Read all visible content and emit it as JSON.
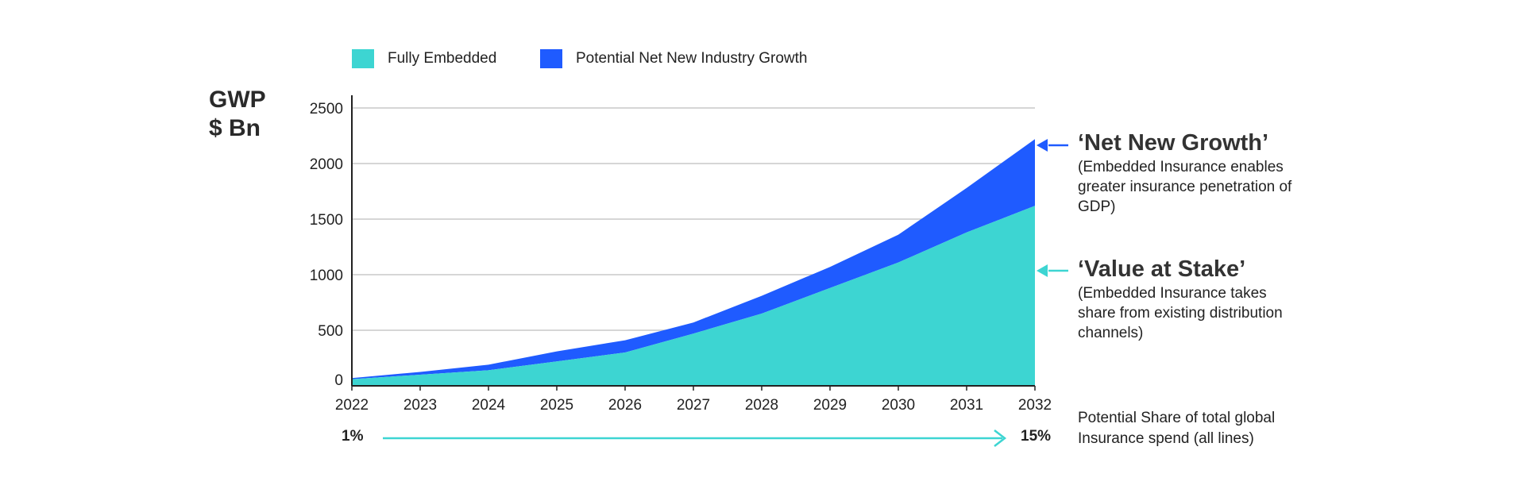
{
  "legend": {
    "fully_embedded": "Fully Embedded",
    "net_new": "Potential Net New Industry Growth"
  },
  "y_axis_label": {
    "line1": "GWP",
    "line2": "$ Bn"
  },
  "annotations": {
    "net_new": {
      "title": "‘Net New Growth’",
      "body_lines": [
        "(Embedded Insurance enables",
        "greater insurance penetration of",
        "GDP)"
      ]
    },
    "value_at_stake": {
      "title": "‘Value at Stake’",
      "body_lines": [
        "(Embedded Insurance takes",
        "share from existing distribution",
        "channels)"
      ]
    }
  },
  "share": {
    "start": "1%",
    "end": "15%",
    "label_lines": [
      "Potential Share of total global",
      "Insurance spend (all lines)"
    ]
  },
  "colors": {
    "fully_embedded": "#3DD5D2",
    "net_new": "#1F5BFF",
    "grid": "#c8c8c8",
    "axis": "#222222",
    "share_arrow": "#3DD5D2"
  },
  "chart_data": {
    "type": "area",
    "stacked": true,
    "x": [
      "2022",
      "2023",
      "2024",
      "2025",
      "2026",
      "2027",
      "2028",
      "2029",
      "2030",
      "2031",
      "2032"
    ],
    "series": [
      {
        "name": "Fully Embedded",
        "values": [
          60,
          100,
          140,
          220,
          300,
          470,
          650,
          880,
          1110,
          1380,
          1620
        ]
      },
      {
        "name": "Potential Net New Industry Growth",
        "values": [
          10,
          25,
          50,
          90,
          110,
          100,
          160,
          190,
          250,
          400,
          600
        ]
      }
    ],
    "totals": [
      70,
      125,
      190,
      310,
      410,
      570,
      810,
      1070,
      1360,
      1780,
      2220
    ],
    "ylim": [
      0,
      2500
    ],
    "yticks": [
      0,
      500,
      1000,
      1500,
      2000,
      2500
    ],
    "ylabel": "GWP $ Bn",
    "grid": true,
    "legend_position": "top-left"
  }
}
